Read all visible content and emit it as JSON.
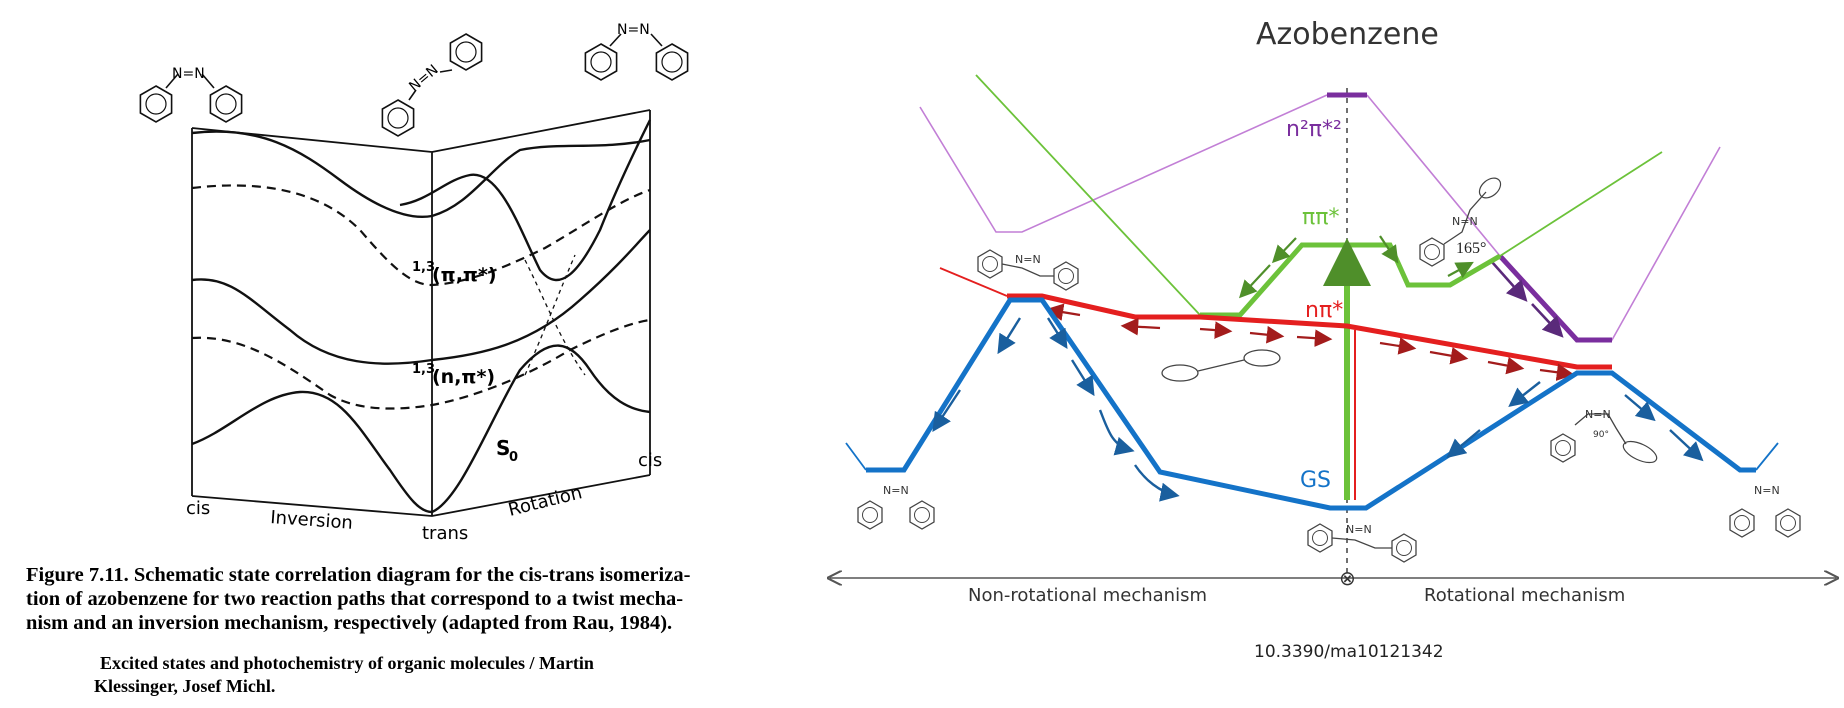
{
  "left_figure": {
    "labels": {
      "pipi": "1,3(π,π*)",
      "pipi_sup": "1,3",
      "pipi_main": "(π,π*)",
      "npi_sup": "1,3",
      "npi_main": "(n,π*)",
      "s0": "S",
      "s0_sub": "0",
      "cis_left": "cis",
      "inversion": "Inversion",
      "trans": "trans",
      "rotation": "Rotation",
      "cis_right": "cis",
      "azo": "N=N"
    },
    "caption": {
      "figure_label": "Figure 7.11.",
      "line1": "Schematic state correlation diagram for the cis-trans isomeriza-",
      "line2": "tion of azobenzene for two reaction paths that correspond to a twist mecha-",
      "line3": "nism and an inversion mechanism, respectively (adapted from Rau, 1984)."
    },
    "source": {
      "line1": "Excited states and photochemistry of organic molecules / Martin",
      "line2": "Klessinger, Josef Michl."
    }
  },
  "right_figure": {
    "title": "Azobenzene",
    "state_labels": {
      "n2pi2": "n²π*²",
      "pipi": "ππ*",
      "npi": "nπ*",
      "gs": "GS"
    },
    "angles": {
      "rotation_angle": "165°",
      "twist_angle": "90°"
    },
    "axis": {
      "left_label": "Non-rotational mechanism",
      "right_label": "Rotational mechanism",
      "center_symbol": "⊗"
    },
    "doi": "10.3390/ma10121342",
    "azo": "N=N"
  },
  "colors": {
    "black": "#111111",
    "n2pi2": "#7a2e9e",
    "n2pi2_thin": "#c27fd6",
    "pipi": "#6cc23a",
    "pipi_dark": "#4f8f2a",
    "npi": "#e41f1f",
    "npi_dark": "#a31c1c",
    "gs": "#1473c8",
    "gs_dark": "#1a5f9e",
    "axis": "#555555"
  }
}
